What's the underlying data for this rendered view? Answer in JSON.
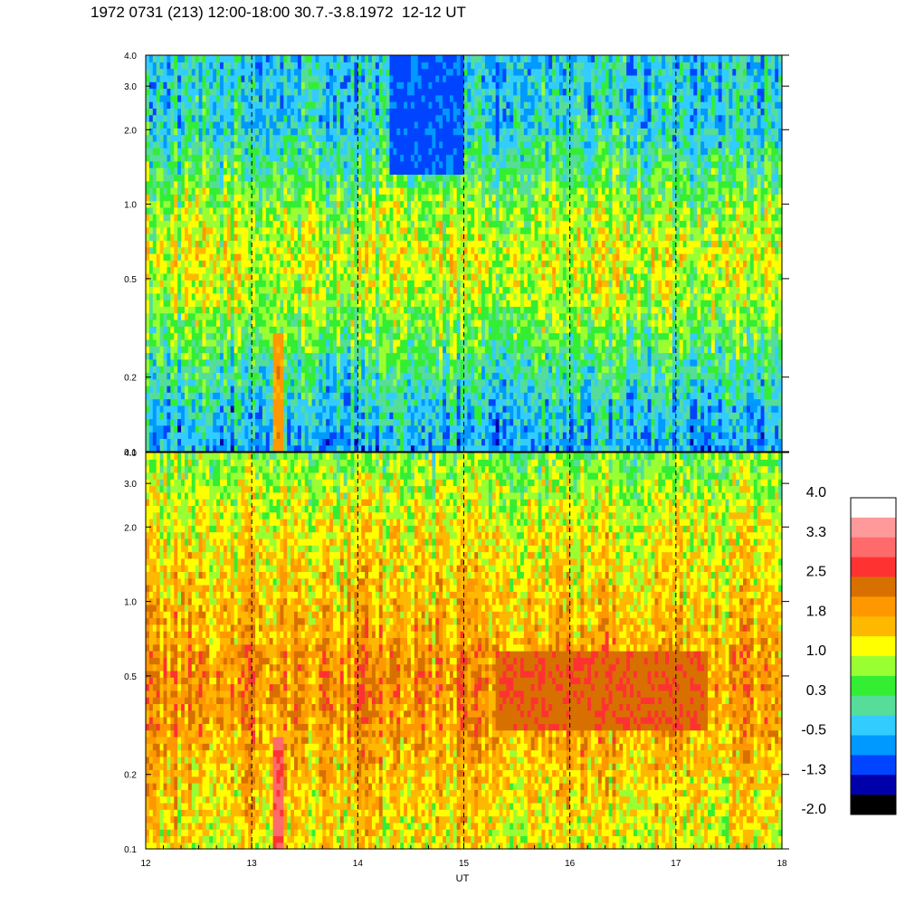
{
  "title": "1972 0731 (213) 12:00-18:00 30.7.-3.8.1972  12-12 UT",
  "chart_data": {
    "type": "heatmap",
    "title": "1972 0731 (213) 12:00-18:00 30.7.-3.8.1972  12-12 UT",
    "xlabel": "UT",
    "x_range": [
      12,
      18
    ],
    "x_ticks": [
      "12",
      "13",
      "14",
      "15",
      "16",
      "17",
      "18"
    ],
    "y_scale": "log",
    "panels": [
      {
        "name": "top",
        "y_range": [
          0.1,
          4.0
        ],
        "y_ticks": [
          {
            "value": 0.1,
            "label": "0.1"
          },
          {
            "value": 0.2,
            "label": "0.2"
          },
          {
            "value": 0.5,
            "label": "0.5"
          },
          {
            "value": 1.0,
            "label": "1.0"
          },
          {
            "value": 2.0,
            "label": "2.0"
          },
          {
            "value": 3.0,
            "label": "3.0"
          },
          {
            "value": 4.0,
            "label": "4.0"
          }
        ],
        "profile": [
          {
            "y": 0.1,
            "level": -0.6
          },
          {
            "y": 0.15,
            "level": -0.3
          },
          {
            "y": 0.25,
            "level": 0.25
          },
          {
            "y": 0.4,
            "level": 0.8
          },
          {
            "y": 0.6,
            "level": 1.1
          },
          {
            "y": 1.0,
            "level": 0.7
          },
          {
            "y": 2.0,
            "level": -0.2
          },
          {
            "y": 4.0,
            "level": -0.3
          }
        ]
      },
      {
        "name": "bottom",
        "y_range": [
          0.1,
          4.0
        ],
        "y_ticks": [
          {
            "value": 0.1,
            "label": "0.1"
          },
          {
            "value": 0.2,
            "label": "0.2"
          },
          {
            "value": 0.5,
            "label": "0.5"
          },
          {
            "value": 1.0,
            "label": "1.0"
          },
          {
            "value": 2.0,
            "label": "2.0"
          },
          {
            "value": 3.0,
            "label": "3.0"
          },
          {
            "value": 4.0,
            "label": "4.0"
          }
        ],
        "profile": [
          {
            "y": 0.1,
            "level": 1.2
          },
          {
            "y": 0.2,
            "level": 1.5
          },
          {
            "y": 0.35,
            "level": 1.9
          },
          {
            "y": 0.5,
            "level": 2.0
          },
          {
            "y": 1.0,
            "level": 1.5
          },
          {
            "y": 2.0,
            "level": 1.2
          },
          {
            "y": 4.0,
            "level": 0.6
          }
        ]
      }
    ],
    "vlines": [
      13,
      14,
      15,
      16,
      17
    ],
    "colorbar": {
      "bins": [
        {
          "label": "4.0",
          "color": "#ffffff"
        },
        {
          "label": "",
          "color": "#ff9a9a"
        },
        {
          "label": "3.3",
          "color": "#ff6a6a"
        },
        {
          "label": "",
          "color": "#ff3232"
        },
        {
          "label": "2.5",
          "color": "#d87000"
        },
        {
          "label": "",
          "color": "#ff9800"
        },
        {
          "label": "1.8",
          "color": "#ffb800"
        },
        {
          "label": "",
          "color": "#ffff00"
        },
        {
          "label": "1.0",
          "color": "#99ff33"
        },
        {
          "label": "",
          "color": "#33ee33"
        },
        {
          "label": "0.3",
          "color": "#55dd99"
        },
        {
          "label": "",
          "color": "#33ccff"
        },
        {
          "label": "-0.5",
          "color": "#0099ff"
        },
        {
          "label": "",
          "color": "#0044ff"
        },
        {
          "label": "-1.3",
          "color": "#0000aa"
        },
        {
          "label": "",
          "color": "#000000"
        },
        {
          "label": "-2.0",
          "color": ""
        }
      ],
      "levels": [
        -2.0,
        -1.3,
        -0.5,
        0.3,
        1.0,
        1.8,
        2.5,
        3.3,
        4.0
      ]
    },
    "palette": [
      "#000000",
      "#0000aa",
      "#0044ff",
      "#0099ff",
      "#33ccff",
      "#55dd99",
      "#33ee33",
      "#99ff33",
      "#ffff00",
      "#ffb800",
      "#ff9800",
      "#d87000",
      "#ff3232",
      "#ff6a6a",
      "#ff9a9a",
      "#ffffff"
    ],
    "features": [
      {
        "panel": "top",
        "x0": 13.2,
        "x1": 13.3,
        "y0": 0.1,
        "y1": 0.3,
        "level": 1.9
      },
      {
        "panel": "bottom",
        "x0": 13.2,
        "x1": 13.3,
        "y0": 0.1,
        "y1": 0.28,
        "level": 3.0
      },
      {
        "panel": "top",
        "x0": 14.3,
        "x1": 15.0,
        "y0": 1.3,
        "y1": 4.0,
        "level": -1.0
      },
      {
        "panel": "bottom",
        "x0": 15.3,
        "x1": 17.3,
        "y0": 0.3,
        "y1": 0.65,
        "level": 2.4
      }
    ]
  }
}
